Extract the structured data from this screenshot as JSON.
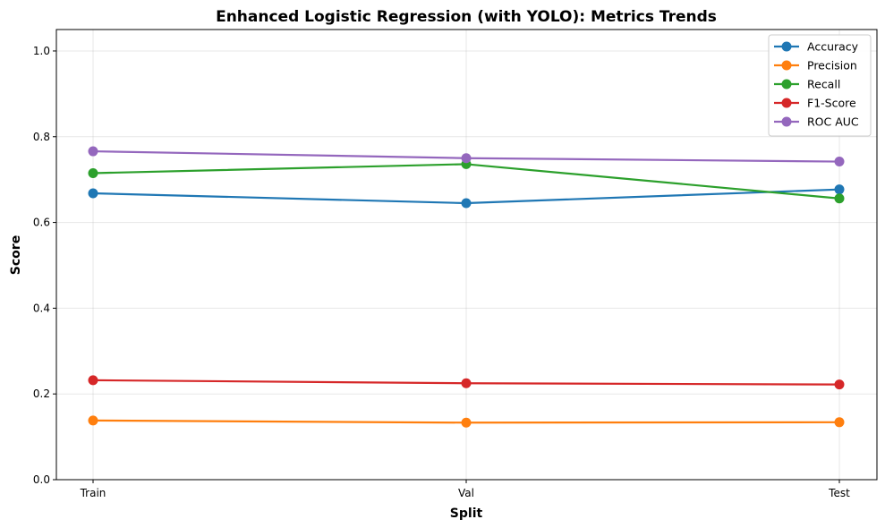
{
  "chart_data": {
    "type": "line",
    "title": "Enhanced Logistic Regression (with YOLO): Metrics Trends",
    "xlabel": "Split",
    "ylabel": "Score",
    "categories": [
      "Train",
      "Val",
      "Test"
    ],
    "ylim": [
      0,
      1.05
    ],
    "yticks": [
      "0.0",
      "0.2",
      "0.4",
      "0.6",
      "0.8",
      "1.0"
    ],
    "grid": true,
    "legend_position": "top-right",
    "series": [
      {
        "name": "Accuracy",
        "color": "#1f77b4",
        "values": [
          0.668,
          0.645,
          0.677
        ]
      },
      {
        "name": "Precision",
        "color": "#ff7f0e",
        "values": [
          0.138,
          0.133,
          0.134
        ]
      },
      {
        "name": "Recall",
        "color": "#2ca02c",
        "values": [
          0.715,
          0.736,
          0.656
        ]
      },
      {
        "name": "F1-Score",
        "color": "#d62728",
        "values": [
          0.232,
          0.225,
          0.222
        ]
      },
      {
        "name": "ROC AUC",
        "color": "#9467bd",
        "values": [
          0.766,
          0.75,
          0.742
        ]
      }
    ]
  }
}
